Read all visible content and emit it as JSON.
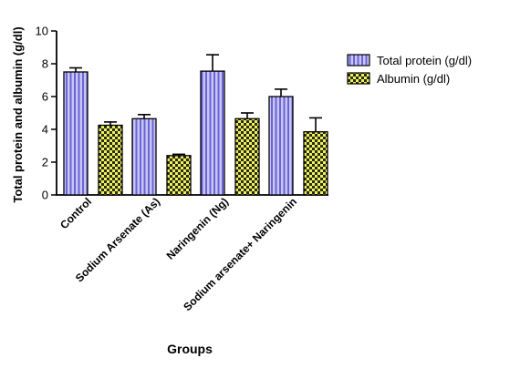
{
  "chart_data": {
    "type": "bar",
    "categories": [
      "Control",
      "Sodium Arsenate (As)",
      "Naringenin (Ng)",
      "Sodium arsenate+ Naringenin"
    ],
    "series": [
      {
        "name": "Total protein (g/dl)",
        "values": [
          7.5,
          4.65,
          7.55,
          6.0
        ],
        "errors": [
          0.25,
          0.25,
          1.0,
          0.45
        ],
        "fill": "#c8c6f2",
        "stripe": "#6a64d6",
        "pattern": "vertical-stripes"
      },
      {
        "name": "Albumin (g/dl)",
        "values": [
          4.25,
          2.4,
          4.65,
          3.85
        ],
        "errors": [
          0.2,
          0.08,
          0.35,
          0.85
        ],
        "fill": "#eef25a",
        "checker": "#2a2a1a",
        "pattern": "checkerboard"
      }
    ],
    "ylabel": "Total protein and albumin (g/dl)",
    "xlabel": "Groups",
    "ylim": [
      0,
      10
    ],
    "yticks": [
      "0",
      "2",
      "4",
      "6",
      "8",
      "10"
    ],
    "legend_position": "top-right",
    "grid": false
  }
}
